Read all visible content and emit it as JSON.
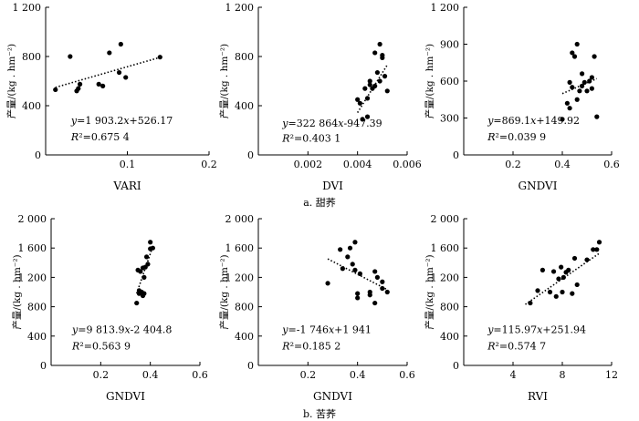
{
  "captions": [
    "a.  甜荞",
    "b.  苦荞"
  ],
  "chart_data": [
    {
      "type": "scatter",
      "xlabel": "VARI",
      "ylabel": "产量/(kg . hm⁻²)",
      "xlim": [
        0,
        0.2
      ],
      "ylim": [
        0,
        1200
      ],
      "xticks": [
        "0.1",
        "0.2"
      ],
      "xticks_v": [
        0.1,
        0.2
      ],
      "yticks": [
        "0",
        "400",
        "800",
        "1 200"
      ],
      "yticks_v": [
        0,
        400,
        800,
        1200
      ],
      "points": [
        [
          0.012,
          530
        ],
        [
          0.03,
          800
        ],
        [
          0.038,
          520
        ],
        [
          0.04,
          540
        ],
        [
          0.042,
          575
        ],
        [
          0.065,
          575
        ],
        [
          0.07,
          560
        ],
        [
          0.078,
          830
        ],
        [
          0.09,
          670
        ],
        [
          0.092,
          900
        ],
        [
          0.098,
          630
        ],
        [
          0.14,
          795
        ]
      ],
      "trend": [
        [
          0.012,
          549
        ],
        [
          0.14,
          793
        ]
      ],
      "equation": "y=1 903.2x+526.17",
      "r2": "R²=0.675 4"
    },
    {
      "type": "scatter",
      "xlabel": "DVI",
      "ylabel": "产量/(kg . hm⁻²)",
      "xlim": [
        0,
        0.006
      ],
      "ylim": [
        0,
        1200
      ],
      "xticks": [
        "0.002",
        "0.004",
        "0.006"
      ],
      "xticks_v": [
        0.002,
        0.004,
        0.006
      ],
      "yticks": [
        "0",
        "400",
        "800",
        "1 200"
      ],
      "yticks_v": [
        0,
        400,
        800,
        1200
      ],
      "points": [
        [
          0.004,
          450
        ],
        [
          0.0041,
          420
        ],
        [
          0.0042,
          290
        ],
        [
          0.0043,
          540
        ],
        [
          0.0044,
          310
        ],
        [
          0.0044,
          460
        ],
        [
          0.0045,
          570
        ],
        [
          0.0045,
          600
        ],
        [
          0.0046,
          540
        ],
        [
          0.0047,
          560
        ],
        [
          0.0047,
          830
        ],
        [
          0.0048,
          670
        ],
        [
          0.0049,
          900
        ],
        [
          0.0049,
          600
        ],
        [
          0.005,
          810
        ],
        [
          0.005,
          790
        ],
        [
          0.0051,
          640
        ],
        [
          0.0052,
          520
        ]
      ],
      "trend": [
        [
          0.004,
          344
        ],
        [
          0.0052,
          732
        ]
      ],
      "equation": "y=322 864x-947.39",
      "r2": "R²=0.403 1"
    },
    {
      "type": "scatter",
      "xlabel": "GNDVI",
      "ylabel": "产量/(kg . hm⁻²)",
      "xlim": [
        0,
        0.6
      ],
      "ylim": [
        0,
        1200
      ],
      "xticks": [
        "0.2",
        "0.4",
        "0.6"
      ],
      "xticks_v": [
        0.2,
        0.4,
        0.6
      ],
      "yticks": [
        "0",
        "300",
        "600",
        "900",
        "1 200"
      ],
      "yticks_v": [
        0,
        300,
        600,
        900,
        1200
      ],
      "points": [
        [
          0.4,
          290
        ],
        [
          0.42,
          420
        ],
        [
          0.43,
          380
        ],
        [
          0.43,
          590
        ],
        [
          0.44,
          550
        ],
        [
          0.44,
          830
        ],
        [
          0.45,
          800
        ],
        [
          0.46,
          900
        ],
        [
          0.46,
          450
        ],
        [
          0.47,
          520
        ],
        [
          0.48,
          660
        ],
        [
          0.48,
          560
        ],
        [
          0.49,
          590
        ],
        [
          0.5,
          520
        ],
        [
          0.51,
          600
        ],
        [
          0.52,
          630
        ],
        [
          0.52,
          540
        ],
        [
          0.53,
          800
        ],
        [
          0.54,
          310
        ]
      ],
      "trend": [
        [
          0.4,
          498
        ],
        [
          0.54,
          620
        ]
      ],
      "equation": "y=869.1x+149.92",
      "r2": "R²=0.039 9"
    },
    {
      "type": "scatter",
      "xlabel": "GNDVI",
      "ylabel": "产量/(kg . hm⁻²)",
      "xlim": [
        0,
        0.6
      ],
      "ylim": [
        0,
        2000
      ],
      "xticks": [
        "0.2",
        "0.4",
        "0.6"
      ],
      "xticks_v": [
        0.2,
        0.4,
        0.6
      ],
      "yticks": [
        "0",
        "400",
        "800",
        "1 200",
        "1 600",
        "2 000"
      ],
      "yticks_v": [
        0,
        400,
        800,
        1200,
        1600,
        2000
      ],
      "points": [
        [
          0.345,
          850
        ],
        [
          0.35,
          1300
        ],
        [
          0.355,
          1020
        ],
        [
          0.355,
          980
        ],
        [
          0.36,
          1280
        ],
        [
          0.365,
          1000
        ],
        [
          0.37,
          950
        ],
        [
          0.37,
          1330
        ],
        [
          0.375,
          1200
        ],
        [
          0.375,
          980
        ],
        [
          0.38,
          1340
        ],
        [
          0.385,
          1480
        ],
        [
          0.39,
          1380
        ],
        [
          0.4,
          1590
        ],
        [
          0.4,
          1680
        ],
        [
          0.41,
          1600
        ]
      ],
      "trend": [
        [
          0.345,
          982
        ],
        [
          0.41,
          1620
        ]
      ],
      "equation": "y=9 813.9x-2 404.8",
      "r2": "R²=0.563 9"
    },
    {
      "type": "scatter",
      "xlabel": "GNDVI",
      "ylabel": "产量/(kg . hm⁻²)",
      "xlim": [
        0,
        0.6
      ],
      "ylim": [
        0,
        2000
      ],
      "xticks": [
        "0.2",
        "0.4",
        "0.6"
      ],
      "xticks_v": [
        0.2,
        0.4,
        0.6
      ],
      "yticks": [
        "0",
        "400",
        "800",
        "1 200",
        "1 600",
        "2 000"
      ],
      "yticks_v": [
        0,
        400,
        800,
        1200,
        1600,
        2000
      ],
      "points": [
        [
          0.28,
          1120
        ],
        [
          0.33,
          1580
        ],
        [
          0.34,
          1320
        ],
        [
          0.36,
          1480
        ],
        [
          0.37,
          1600
        ],
        [
          0.38,
          1380
        ],
        [
          0.39,
          1680
        ],
        [
          0.39,
          1300
        ],
        [
          0.4,
          980
        ],
        [
          0.4,
          920
        ],
        [
          0.41,
          1250
        ],
        [
          0.45,
          1000
        ],
        [
          0.45,
          960
        ],
        [
          0.47,
          850
        ],
        [
          0.47,
          1280
        ],
        [
          0.48,
          1200
        ],
        [
          0.5,
          1050
        ],
        [
          0.5,
          1140
        ],
        [
          0.52,
          1000
        ]
      ],
      "trend": [
        [
          0.28,
          1452
        ],
        [
          0.52,
          1033
        ]
      ],
      "equation": "y=-1 746x+1 941",
      "r2": "R²=0.185 2"
    },
    {
      "type": "scatter",
      "xlabel": "RVI",
      "ylabel": "产量/(kg . hm⁻²)",
      "xlim": [
        0,
        12
      ],
      "ylim": [
        0,
        2000
      ],
      "xticks": [
        "4",
        "8",
        "12"
      ],
      "xticks_v": [
        4,
        8,
        12
      ],
      "yticks": [
        "0",
        "400",
        "800",
        "1 200",
        "1 600",
        "2 000"
      ],
      "yticks_v": [
        0,
        400,
        800,
        1200,
        1600,
        2000
      ],
      "points": [
        [
          5.4,
          850
        ],
        [
          6.0,
          1020
        ],
        [
          6.4,
          1300
        ],
        [
          7.0,
          1000
        ],
        [
          7.3,
          1280
        ],
        [
          7.5,
          940
        ],
        [
          7.7,
          1180
        ],
        [
          7.9,
          1340
        ],
        [
          8.0,
          1000
        ],
        [
          8.1,
          1200
        ],
        [
          8.3,
          1270
        ],
        [
          8.5,
          1300
        ],
        [
          8.8,
          980
        ],
        [
          9.0,
          1460
        ],
        [
          9.2,
          1100
        ],
        [
          10.0,
          1440
        ],
        [
          10.5,
          1580
        ],
        [
          10.8,
          1580
        ],
        [
          11.0,
          1680
        ]
      ],
      "trend": [
        [
          5.0,
          832
        ],
        [
          11.0,
          1528
        ]
      ],
      "equation": "y=115.97x+251.94",
      "r2": "R²=0.574 7"
    }
  ]
}
